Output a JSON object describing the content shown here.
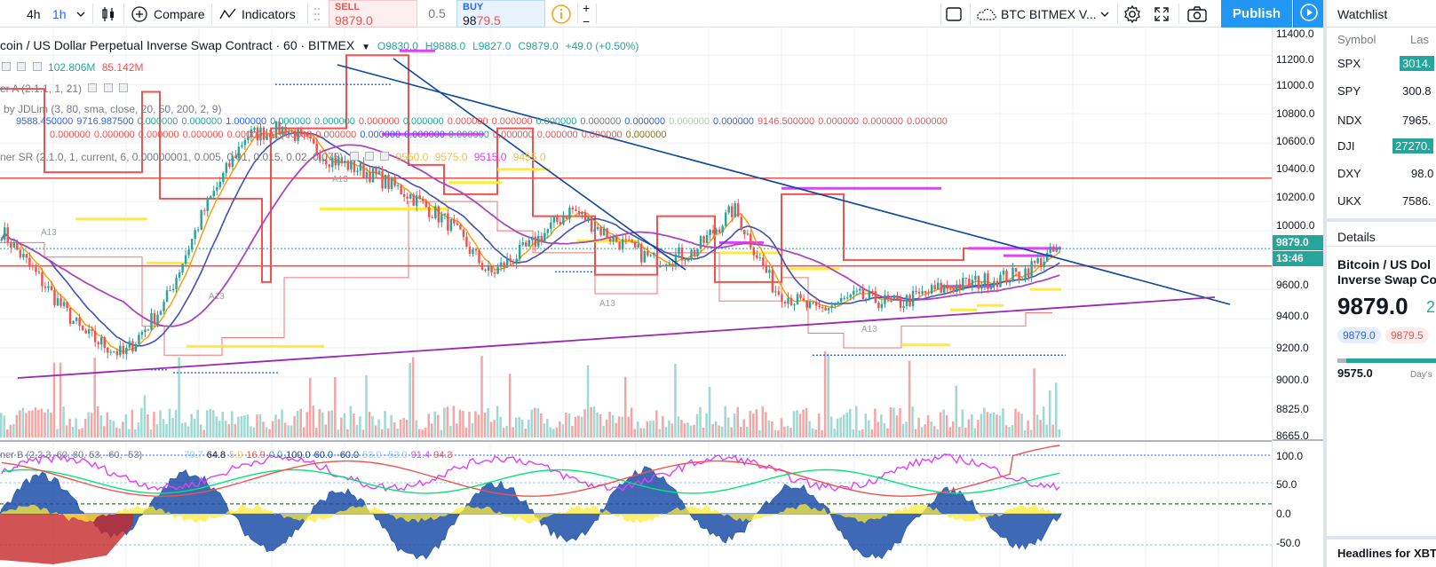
{
  "toolbar": {
    "interval_4h": "4h",
    "interval_1h": "1h",
    "compare_label": "Compare",
    "indicators_label": "Indicators",
    "sell_label": "SELL",
    "sell_price": "9879.0",
    "spread": "0.5",
    "buy_label": "BUY",
    "buy_price_a": "98",
    "buy_price_b": "79.5",
    "symbol_select": "BTC BITMEX V...",
    "publish_label": "Publish",
    "plus": "+",
    "minus": "−"
  },
  "chart": {
    "title": "coin / US Dollar Perpetual Inverse Swap Contract · 60 · BITMEX",
    "ohlc": {
      "o": "O9830.0",
      "h": "H9888.0",
      "l": "L9827.0",
      "c": "C9879.0",
      "chg": "+49.0 (+0.50%)"
    },
    "legend1": [
      "102.806M",
      "85.142M"
    ],
    "legend2": "er A (2.1.1, 1, 21)",
    "legend3_name": "by JDLim (3, 80, sma, close, 20, 50, 200, 2, 9)",
    "legend3_vals": [
      "9588.450000",
      "9716.987500",
      "0.000000",
      "0.000000",
      "1.000000",
      "0.000000",
      "0.000000",
      "0.000000",
      "0.000000",
      "0.000000",
      "0.000000",
      "0.000000",
      "0.000000",
      "0.000000",
      "0.000000",
      "0.000000",
      "9146.500000",
      "0.000000",
      "0.000000",
      "0.000000"
    ],
    "legend4_vals": [
      "0.000000",
      "0.000000",
      "0.000000",
      "0.000000",
      "0.000000",
      "0.000000",
      "0.000000",
      "0.000000",
      "0.000000",
      "0.000000",
      "0.000000",
      "0.000000",
      "0.000000",
      "0.000000"
    ],
    "legend5": "ner SR (2.1.0, 1, current, 6, 0.00000001, 0.005, 0.01, 0.015, 0.02, 0.075)",
    "legend5_vals": [
      "9560.0",
      "9575.0",
      "9515.0",
      "9455.0"
    ],
    "osc_legend": "ner B (2.2.3, 60, 60, 53, -60, -53)",
    "osc_vals": [
      "70.7",
      "64.8",
      "5.0",
      "16.9",
      "0.0",
      "100.0",
      "60.0",
      "-60.0",
      "53.0",
      "-53.0",
      "91.4",
      "94.3"
    ],
    "marker_labels": [
      "A13",
      "A13",
      "A13",
      "A13",
      "A13"
    ]
  },
  "price_axis": {
    "ticks": [
      "11400.0",
      "11200.0",
      "11000.0",
      "10800.0",
      "10600.0",
      "10400.0",
      "10200.0",
      "10000.0",
      "9600.0",
      "9400.0",
      "9200.0",
      "9000.0",
      "8825.0",
      "8665.0"
    ],
    "last_price": "9879.0",
    "countdown": "13:46",
    "osc_ticks": [
      "100.0",
      "50.0",
      "0.0",
      "-50.0"
    ]
  },
  "chart_data": {
    "type": "candlestick",
    "symbol": "BTCUSD Perpetual (BITMEX)",
    "interval": "60",
    "last": {
      "open": 9830.0,
      "high": 9888.0,
      "low": 9827.0,
      "close": 9879.0,
      "change": 49.0,
      "change_pct": 0.5
    },
    "approx_close_path": [
      10000,
      9650,
      9300,
      9150,
      9500,
      10150,
      10650,
      10700,
      10500,
      10400,
      10250,
      10050,
      9700,
      9900,
      10150,
      9950,
      9800,
      9850,
      10150,
      9600,
      9450,
      9550,
      9500,
      9600,
      9650,
      9700,
      9879
    ],
    "ylim": [
      8600,
      11450
    ]
  },
  "watchlist": {
    "header": "Watchlist",
    "col_symbol": "Symbol",
    "col_last": "Las",
    "rows": [
      {
        "symbol": "SPX",
        "last": "3014.",
        "color": "#26a69a"
      },
      {
        "symbol": "SPY",
        "last": "300.8",
        "color": ""
      },
      {
        "symbol": "NDX",
        "last": "7965.",
        "color": ""
      },
      {
        "symbol": "DJI",
        "last": "27270.",
        "color": "#26a69a"
      },
      {
        "symbol": "DXY",
        "last": "98.0",
        "color": ""
      },
      {
        "symbol": "UKX",
        "last": "7586.",
        "color": ""
      }
    ]
  },
  "details": {
    "header": "Details",
    "name_line1": "Bitcoin / US Dol",
    "name_line2": "Inverse Swap Co",
    "price": "9879.0",
    "change": "2",
    "bid": "9879.0",
    "ask": "9879.5",
    "low": "9575.0",
    "days_label": "Day's"
  },
  "headlines": {
    "label": "Headlines for XBT"
  },
  "colors": {
    "accent": "#2196f3",
    "up": "#26a69a",
    "down": "#ef5350",
    "magenta": "#e040fb",
    "purple": "#9c27b0",
    "navy": "#0d47a1"
  }
}
